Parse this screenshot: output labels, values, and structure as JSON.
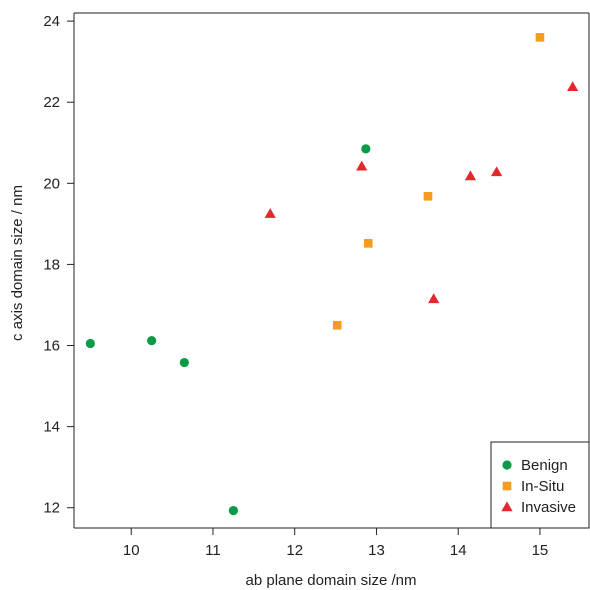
{
  "chart_data": {
    "type": "scatter",
    "title": "",
    "xlabel": "ab plane domain size /nm",
    "ylabel": "c axis domain size / nm",
    "xlim": [
      9.3,
      15.6
    ],
    "ylim": [
      11.5,
      24.2
    ],
    "xticks": [
      10,
      11,
      12,
      13,
      14,
      15
    ],
    "yticks": [
      12,
      14,
      16,
      18,
      20,
      22,
      24
    ],
    "grid": false,
    "legend_position": "bottom-right",
    "series": [
      {
        "name": "Benign",
        "marker": "circle",
        "color": "#0a9a48",
        "points": [
          {
            "x": 9.5,
            "y": 16.05
          },
          {
            "x": 10.25,
            "y": 16.12
          },
          {
            "x": 10.65,
            "y": 15.58
          },
          {
            "x": 11.25,
            "y": 11.93
          },
          {
            "x": 12.87,
            "y": 20.85
          }
        ]
      },
      {
        "name": "In-Situ",
        "marker": "square",
        "color": "#f39c1f",
        "points": [
          {
            "x": 12.52,
            "y": 16.5
          },
          {
            "x": 12.9,
            "y": 18.52
          },
          {
            "x": 13.63,
            "y": 19.68
          },
          {
            "x": 15.0,
            "y": 23.6
          }
        ]
      },
      {
        "name": "Invasive",
        "marker": "triangle",
        "color": "#e5262b",
        "points": [
          {
            "x": 11.7,
            "y": 19.25
          },
          {
            "x": 12.82,
            "y": 20.42
          },
          {
            "x": 13.7,
            "y": 17.15
          },
          {
            "x": 14.15,
            "y": 20.18
          },
          {
            "x": 14.47,
            "y": 20.28
          },
          {
            "x": 15.4,
            "y": 22.38
          }
        ]
      }
    ]
  }
}
